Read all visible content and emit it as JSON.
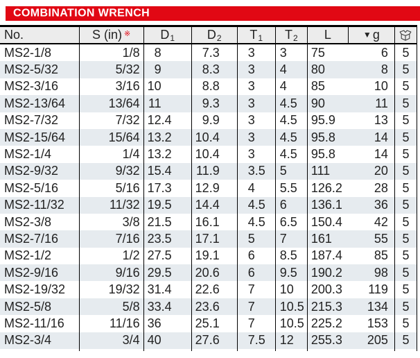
{
  "title": "COMBINATION WRENCH",
  "table": {
    "headers": [
      {
        "id": "no",
        "label": "No."
      },
      {
        "id": "s",
        "label": "S (in)",
        "mark": "※"
      },
      {
        "id": "d1",
        "label": "D",
        "sub": "1"
      },
      {
        "id": "d2",
        "label": "D",
        "sub": "2"
      },
      {
        "id": "t1",
        "label": "T",
        "sub": "1"
      },
      {
        "id": "t2",
        "label": "T",
        "sub": "2"
      },
      {
        "id": "l",
        "label": "L"
      },
      {
        "id": "g",
        "label": "g",
        "prefix": "▼"
      },
      {
        "id": "box",
        "label": "",
        "icon": "packing-box-icon"
      }
    ],
    "rows": [
      [
        "MS2-1/8",
        "1/8",
        "8",
        "7.3",
        "3",
        "3",
        "75",
        "6",
        "5"
      ],
      [
        "MS2-5/32",
        "5/32",
        "9",
        "8.3",
        "3",
        "4",
        "80",
        "8",
        "5"
      ],
      [
        "MS2-3/16",
        "3/16",
        "10",
        "8.8",
        "3",
        "4",
        "85",
        "10",
        "5"
      ],
      [
        "MS2-13/64",
        "13/64",
        "11",
        "9.3",
        "3",
        "4.5",
        "90",
        "11",
        "5"
      ],
      [
        "MS2-7/32",
        "7/32",
        "12.4",
        "9.9",
        "3",
        "4.5",
        "95.9",
        "13",
        "5"
      ],
      [
        "MS2-15/64",
        "15/64",
        "13.2",
        "10.4",
        "3",
        "4.5",
        "95.8",
        "14",
        "5"
      ],
      [
        "MS2-1/4",
        "1/4",
        "13.2",
        "10.4",
        "3",
        "4.5",
        "95.8",
        "14",
        "5"
      ],
      [
        "MS2-9/32",
        "9/32",
        "15.4",
        "11.9",
        "3.5",
        "5",
        "111",
        "20",
        "5"
      ],
      [
        "MS2-5/16",
        "5/16",
        "17.3",
        "12.9",
        "4",
        "5.5",
        "126.2",
        "28",
        "5"
      ],
      [
        "MS2-11/32",
        "11/32",
        "19.5",
        "14.4",
        "4.5",
        "6",
        "136.1",
        "36",
        "5"
      ],
      [
        "MS2-3/8",
        "3/8",
        "21.5",
        "16.1",
        "4.5",
        "6.5",
        "150.4",
        "42",
        "5"
      ],
      [
        "MS2-7/16",
        "7/16",
        "23.5",
        "17.1",
        "5",
        "7",
        "161",
        "55",
        "5"
      ],
      [
        "MS2-1/2",
        "1/2",
        "27.5",
        "19.1",
        "6",
        "8.5",
        "187.4",
        "85",
        "5"
      ],
      [
        "MS2-9/16",
        "9/16",
        "29.5",
        "20.6",
        "6",
        "9.5",
        "190.2",
        "98",
        "5"
      ],
      [
        "MS2-19/32",
        "19/32",
        "31.4",
        "22.6",
        "7",
        "10",
        "200.3",
        "119",
        "5"
      ],
      [
        "MS2-5/8",
        "5/8",
        "33.4",
        "23.6",
        "7",
        "10.5",
        "215.3",
        "134",
        "5"
      ],
      [
        "MS2-11/16",
        "11/16",
        "36",
        "25.1",
        "7",
        "10.5",
        "225.2",
        "153",
        "5"
      ],
      [
        "MS2-3/4",
        "3/4",
        "40",
        "27.6",
        "7.5",
        "12",
        "255.3",
        "205",
        "5"
      ]
    ]
  },
  "colors": {
    "banner_red": "#e10814",
    "header_bg": "#ececec",
    "row_stripe": "#e6ebef",
    "border": "#000000",
    "text": "#222222"
  }
}
